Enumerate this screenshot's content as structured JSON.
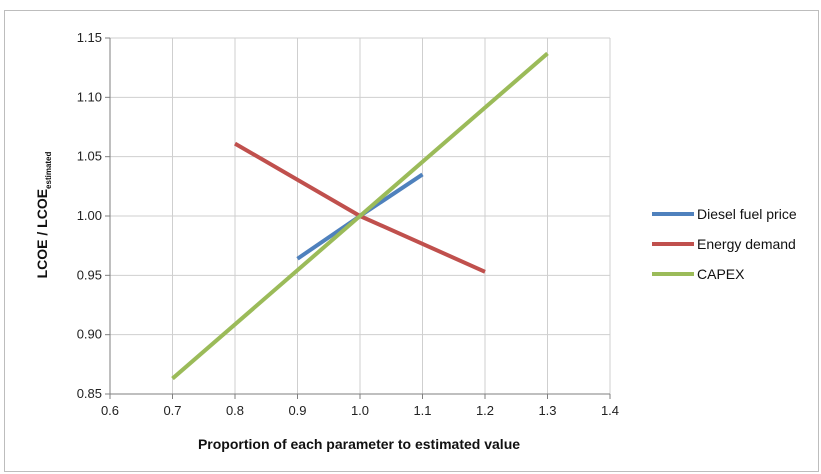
{
  "chart_data": {
    "type": "line",
    "xlabel": "Proportion of each parameter to estimated value",
    "ylabel_main": "LCOE / LCOE",
    "ylabel_sub": "estimated",
    "xlim": [
      0.6,
      1.4
    ],
    "ylim": [
      0.85,
      1.15
    ],
    "x_ticks": [
      "0.6",
      "0.7",
      "0.8",
      "0.9",
      "1.0",
      "1.1",
      "1.2",
      "1.3",
      "1.4"
    ],
    "y_ticks": [
      "0.85",
      "0.90",
      "0.95",
      "1.00",
      "1.05",
      "1.10",
      "1.15"
    ],
    "grid": true,
    "legend_position": "right",
    "series": [
      {
        "name": "Diesel fuel price",
        "color": "#4f81bd",
        "x": [
          0.9,
          1.0,
          1.1
        ],
        "y": [
          0.964,
          1.0,
          1.035
        ]
      },
      {
        "name": "Energy demand",
        "color": "#c0504d",
        "x": [
          0.8,
          1.0,
          1.2
        ],
        "y": [
          1.061,
          1.0,
          0.953
        ]
      },
      {
        "name": "CAPEX",
        "color": "#9bbb59",
        "x": [
          0.7,
          1.0,
          1.3
        ],
        "y": [
          0.863,
          1.0,
          1.137
        ]
      }
    ]
  }
}
